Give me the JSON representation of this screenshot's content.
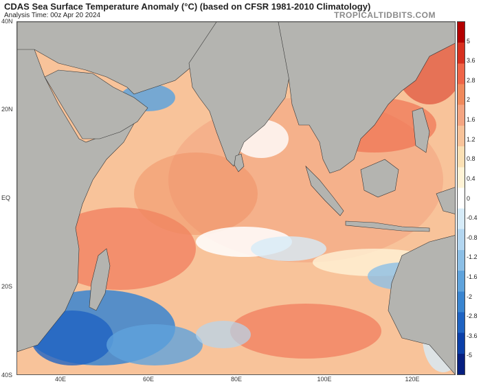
{
  "header": {
    "title": "CDAS Sea Surface Temperature Anomaly (°C) (based on CFSR 1981-2010 Climatology)",
    "subtitle": "Analysis Time: 00z Apr 20 2024",
    "brand": "TROPICALTIDBITS.COM"
  },
  "axes": {
    "lat_labels": [
      "40N",
      "20N",
      "EQ",
      "20S",
      "40S"
    ],
    "lon_labels": [
      "40E",
      "60E",
      "80E",
      "100E",
      "120E"
    ]
  },
  "colorbar": {
    "labels": [
      "5",
      "3.6",
      "2.8",
      "2",
      "1.6",
      "1.2",
      "0.8",
      "0.4",
      "0",
      "-0.4",
      "-0.8",
      "-1.2",
      "-1.6",
      "-2",
      "-2.8",
      "-3.6",
      "-5"
    ],
    "colors": [
      "#b30000",
      "#d7301f",
      "#ef6548",
      "#f08a5d",
      "#f4a582",
      "#f8c39a",
      "#fbe0b4",
      "#fff3d6",
      "#ffffff",
      "#d6ebf8",
      "#b3d6f0",
      "#8cbfe6",
      "#5fa3dc",
      "#3a85d0",
      "#1f63c2",
      "#0b3fa8",
      "#061f80"
    ]
  },
  "map": {
    "land_color": "#b4b4b0",
    "ocean_base_color": "#f8c39a"
  }
}
